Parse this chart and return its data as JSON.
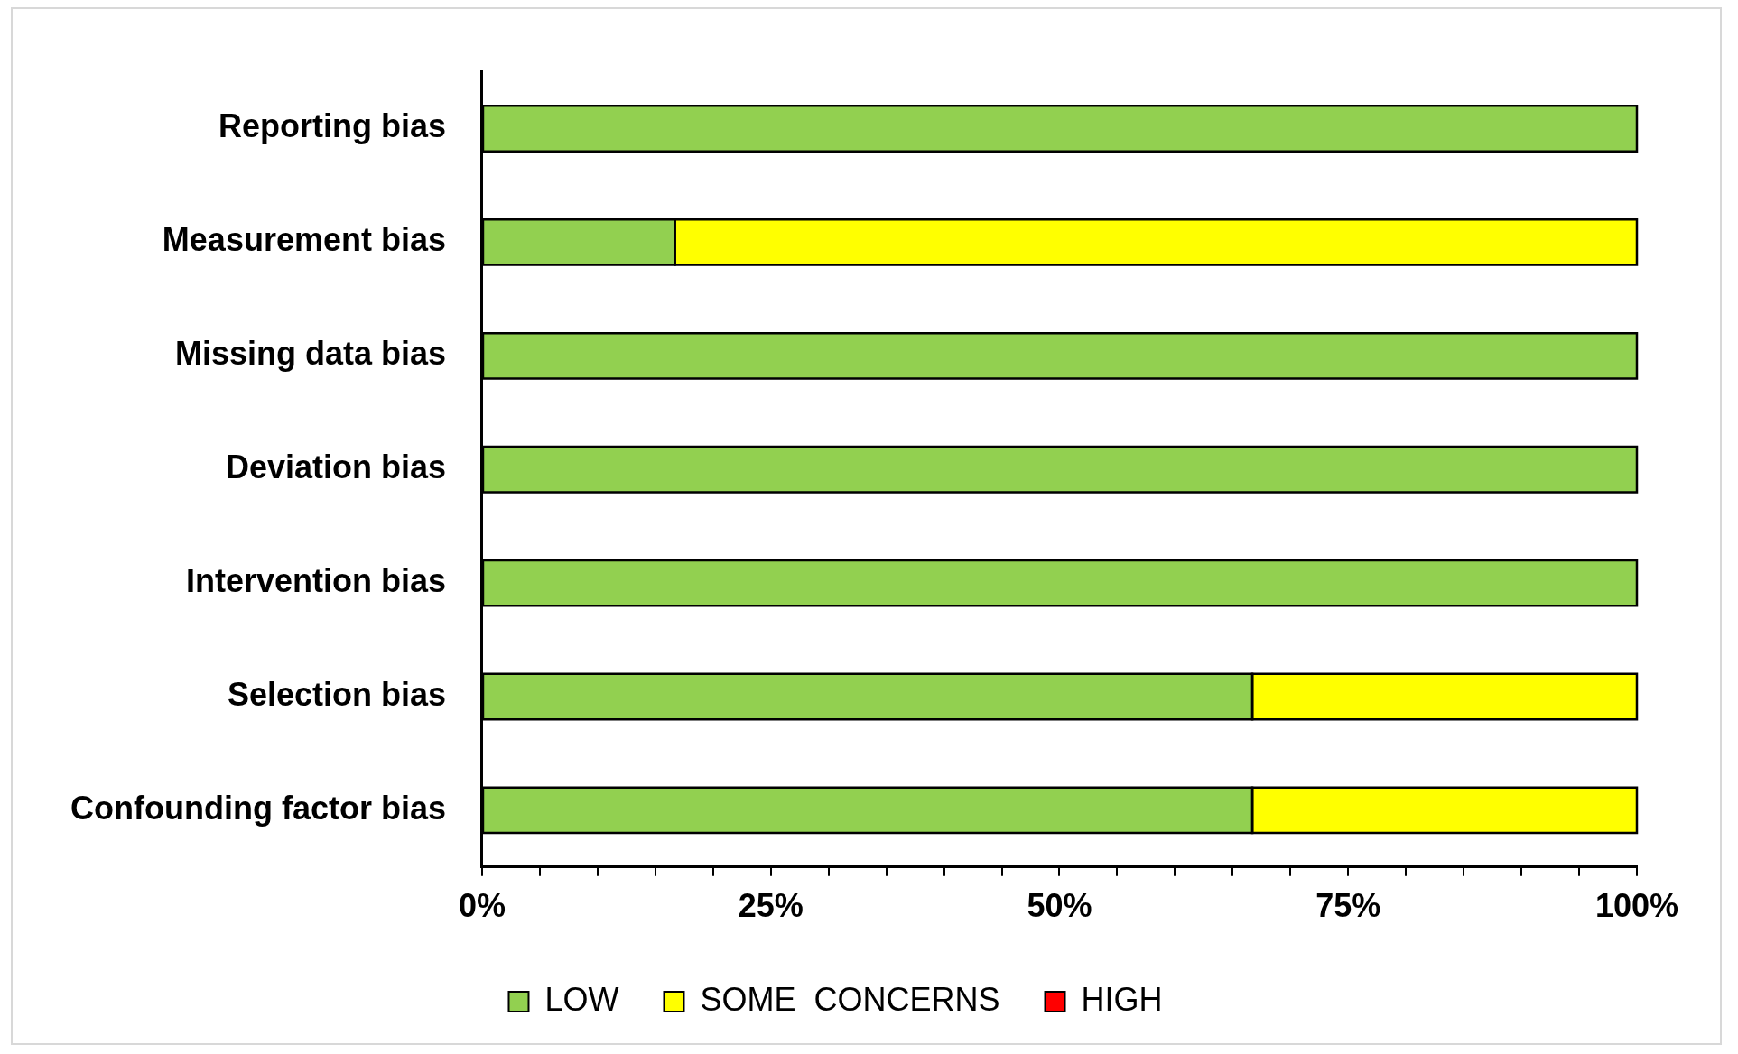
{
  "chart_data": {
    "type": "bar",
    "orientation": "horizontal",
    "stacked": true,
    "categories": [
      "Reporting bias",
      "Measurement bias",
      "Missing data bias",
      "Deviation bias",
      "Intervention bias",
      "Selection bias",
      "Confounding factor bias"
    ],
    "series": [
      {
        "name": "LOW",
        "color": "#92d050",
        "values": [
          100,
          16.7,
          100,
          100,
          100,
          66.7,
          66.7
        ]
      },
      {
        "name": "SOME  CONCERNS",
        "color": "#ffff00",
        "values": [
          0,
          83.3,
          0,
          0,
          0,
          33.3,
          33.3
        ]
      },
      {
        "name": "HIGH",
        "color": "#ff0000",
        "values": [
          0,
          0,
          0,
          0,
          0,
          0,
          0
        ]
      }
    ],
    "xlim": [
      0,
      100
    ],
    "xticks": [
      {
        "value": 0,
        "label": "0%"
      },
      {
        "value": 5,
        "label": null
      },
      {
        "value": 10,
        "label": null
      },
      {
        "value": 15,
        "label": null
      },
      {
        "value": 20,
        "label": null
      },
      {
        "value": 25,
        "label": "25%"
      },
      {
        "value": 30,
        "label": null
      },
      {
        "value": 35,
        "label": null
      },
      {
        "value": 40,
        "label": null
      },
      {
        "value": 45,
        "label": null
      },
      {
        "value": 50,
        "label": "50%"
      },
      {
        "value": 55,
        "label": null
      },
      {
        "value": 60,
        "label": null
      },
      {
        "value": 65,
        "label": null
      },
      {
        "value": 70,
        "label": null
      },
      {
        "value": 75,
        "label": "75%"
      },
      {
        "value": 80,
        "label": null
      },
      {
        "value": 85,
        "label": null
      },
      {
        "value": 90,
        "label": null
      },
      {
        "value": 95,
        "label": null
      },
      {
        "value": 100,
        "label": "100%"
      }
    ],
    "grid": false,
    "legend": "bottom"
  }
}
